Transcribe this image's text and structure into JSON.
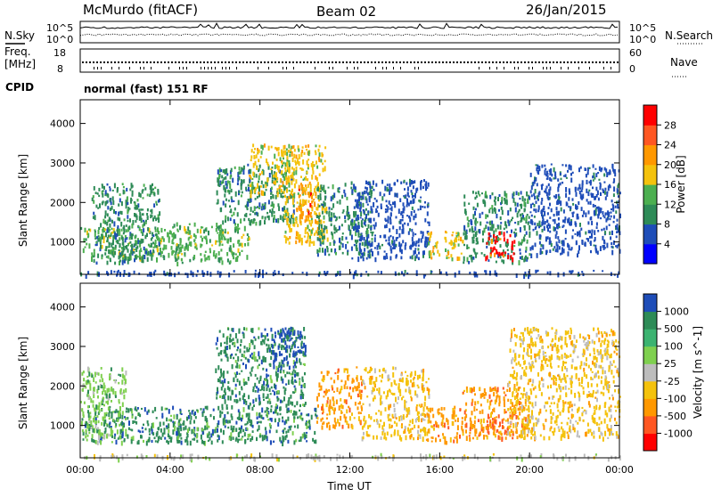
{
  "header": {
    "station": "McMurdo (fitACF)",
    "beam": "Beam 02",
    "date": "26/Jan/2015"
  },
  "left_labels": {
    "nsky": "N.Sky",
    "freq_line1": "Freq.",
    "freq_line2": "[MHz]",
    "cpid": "CPID"
  },
  "right_labels": {
    "nsearch": "N.Search",
    "nave": "Nave"
  },
  "noise_panel": {
    "left_ticks": [
      "10^5",
      "10^0"
    ],
    "right_ticks": [
      "10^5",
      "10^0"
    ]
  },
  "freq_panel": {
    "left_ticks": [
      "18",
      "8"
    ],
    "right_ticks": [
      "60",
      "0"
    ]
  },
  "cpid_text": "normal (fast) 151 RF",
  "chart_data": [
    {
      "type": "heatmap",
      "panel": "power",
      "xlabel": "Time UT",
      "ylabel": "Slant Range [km]",
      "x_ticks": [
        "00:00",
        "04:00",
        "08:00",
        "12:00",
        "16:00",
        "20:00",
        "00:00"
      ],
      "y_ticks": [
        1000,
        2000,
        3000,
        4000
      ],
      "ylim": [
        180,
        4600
      ],
      "xlim_hours": [
        0,
        24
      ],
      "colorbar": {
        "label": "Power [dB]",
        "ticks": [
          4,
          8,
          12,
          16,
          20,
          24,
          28
        ],
        "colors": [
          "#0000ff",
          "#1e4db8",
          "#2e8b57",
          "#4caf50",
          "#f4c20d",
          "#ff9800",
          "#ff5722",
          "#ff0000"
        ]
      },
      "colors": [
        "#1e4db8",
        "#2e8b57",
        "#4caf50",
        "#f4c20d",
        "#ff9800",
        "#ff0000"
      ],
      "regions": [
        {
          "t0": 0.0,
          "t1": 4.5,
          "r0": 600,
          "r1": 1400,
          "level": 2
        },
        {
          "t0": 0.5,
          "t1": 3.5,
          "r0": 500,
          "r1": 2500,
          "level": 1
        },
        {
          "t0": 4.0,
          "t1": 7.5,
          "r0": 500,
          "r1": 1500,
          "level": 2
        },
        {
          "t0": 6.0,
          "t1": 9.5,
          "r0": 1500,
          "r1": 3000,
          "level": 1
        },
        {
          "t0": 7.5,
          "t1": 9.5,
          "r0": 2200,
          "r1": 3500,
          "level": 3
        },
        {
          "t0": 9.0,
          "t1": 11.0,
          "r0": 1000,
          "r1": 3500,
          "level": 3
        },
        {
          "t0": 9.5,
          "t1": 10.5,
          "r0": 1500,
          "r1": 2500,
          "level": 4
        },
        {
          "t0": 10.5,
          "t1": 13.0,
          "r0": 700,
          "r1": 2500,
          "level": 1
        },
        {
          "t0": 12.0,
          "t1": 15.5,
          "r0": 600,
          "r1": 2600,
          "level": 0
        },
        {
          "t0": 15.3,
          "t1": 17.0,
          "r0": 600,
          "r1": 1300,
          "level": 3
        },
        {
          "t0": 17.0,
          "t1": 20.0,
          "r0": 500,
          "r1": 2300,
          "level": 1
        },
        {
          "t0": 18.0,
          "t1": 19.3,
          "r0": 600,
          "r1": 1300,
          "level": 5
        },
        {
          "t0": 20.0,
          "t1": 24.0,
          "r0": 700,
          "r1": 3000,
          "level": 0
        },
        {
          "t0": 0.0,
          "t1": 24.0,
          "r0": 180,
          "r1": 300,
          "level": 0
        }
      ]
    },
    {
      "type": "heatmap",
      "panel": "velocity",
      "xlabel": "Time UT",
      "ylabel": "Slant Range [km]",
      "x_ticks": [
        "00:00",
        "04:00",
        "08:00",
        "12:00",
        "16:00",
        "20:00",
        "00:00"
      ],
      "y_ticks": [
        1000,
        2000,
        3000,
        4000
      ],
      "ylim": [
        180,
        4600
      ],
      "xlim_hours": [
        0,
        24
      ],
      "colorbar": {
        "label": "Velocity [m s^-1]",
        "ticks": [
          1000,
          500,
          100,
          25,
          -25,
          -100,
          -500,
          -1000
        ],
        "colors": [
          "#1e4db8",
          "#2e8b57",
          "#3cb371",
          "#7fd04f",
          "#bdbdbd",
          "#f4c20d",
          "#ff9800",
          "#ff5722",
          "#ff0000"
        ]
      },
      "colors": [
        "#1e4db8",
        "#2e8b57",
        "#7fd04f",
        "#bdbdbd",
        "#f4c20d",
        "#ff9800",
        "#ff5722"
      ],
      "regions": [
        {
          "t0": 0.0,
          "t1": 4.5,
          "r0": 600,
          "r1": 1500,
          "level": 1
        },
        {
          "t0": 0.0,
          "t1": 2.0,
          "r0": 600,
          "r1": 2500,
          "level": 2
        },
        {
          "t0": 4.0,
          "t1": 10.5,
          "r0": 600,
          "r1": 1500,
          "level": 1
        },
        {
          "t0": 6.0,
          "t1": 10.0,
          "r0": 1500,
          "r1": 3500,
          "level": 1
        },
        {
          "t0": 8.5,
          "t1": 10.0,
          "r0": 2500,
          "r1": 3500,
          "level": 0
        },
        {
          "t0": 10.5,
          "t1": 12.5,
          "r0": 1000,
          "r1": 2500,
          "level": 5
        },
        {
          "t0": 12.5,
          "t1": 15.5,
          "r0": 700,
          "r1": 2500,
          "level": 4
        },
        {
          "t0": 15.3,
          "t1": 17.0,
          "r0": 600,
          "r1": 1500,
          "level": 5
        },
        {
          "t0": 17.0,
          "t1": 20.0,
          "r0": 700,
          "r1": 2000,
          "level": 5
        },
        {
          "t0": 18.0,
          "t1": 19.5,
          "r0": 800,
          "r1": 1300,
          "level": 6
        },
        {
          "t0": 19.0,
          "t1": 24.0,
          "r0": 700,
          "r1": 3500,
          "level": 4
        },
        {
          "t0": 0.0,
          "t1": 24.0,
          "r0": 180,
          "r1": 300,
          "level": 3
        }
      ]
    }
  ]
}
